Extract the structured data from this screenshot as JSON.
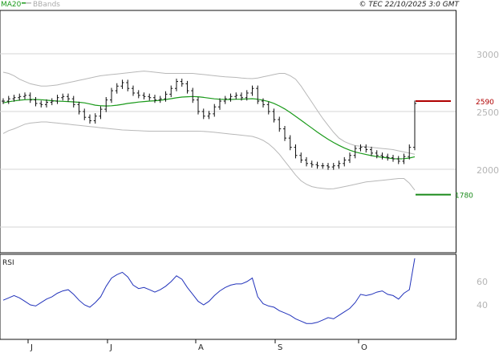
{
  "header": {
    "ma_label": "MA20",
    "bbands_label": "BBands",
    "copyright": "© TEC 22/10/2025 3:0 GMT"
  },
  "rsi_label": "RSI",
  "colors": {
    "price": "#111111",
    "ma": "#1a9a1a",
    "bbands": "#b8b8b8",
    "rsi": "#2233bb",
    "resistance": "#b00000",
    "support": "#1a8a1a",
    "grid": "#d6d6d6"
  },
  "chart_data": [
    {
      "type": "line",
      "title": "",
      "price_axis": {
        "ticks": [
          2000,
          2500,
          3000
        ],
        "tick_labels": [
          "2000",
          "2500",
          "3000"
        ]
      },
      "x_labels": [
        "J",
        "J",
        "A",
        "S",
        "O"
      ],
      "levels": [
        {
          "name": "resistance",
          "value": 2590,
          "label": "2590"
        },
        {
          "name": "support",
          "value": 1780,
          "label": "1780"
        }
      ],
      "series": [
        {
          "name": "price",
          "values": [
            2590,
            2610,
            2620,
            2630,
            2640,
            2600,
            2570,
            2560,
            2580,
            2590,
            2620,
            2630,
            2610,
            2560,
            2500,
            2450,
            2420,
            2460,
            2520,
            2600,
            2680,
            2720,
            2750,
            2700,
            2660,
            2640,
            2630,
            2620,
            2600,
            2610,
            2650,
            2700,
            2760,
            2740,
            2680,
            2600,
            2500,
            2460,
            2480,
            2540,
            2590,
            2610,
            2630,
            2640,
            2620,
            2660,
            2700,
            2590,
            2560,
            2500,
            2430,
            2350,
            2270,
            2190,
            2120,
            2080,
            2050,
            2040,
            2030,
            2030,
            2020,
            2030,
            2050,
            2080,
            2120,
            2180,
            2190,
            2170,
            2140,
            2120,
            2110,
            2100,
            2090,
            2070,
            2110,
            2190,
            2570
          ]
        },
        {
          "name": "MA20",
          "values": [
            2575,
            2585,
            2592,
            2598,
            2602,
            2604,
            2604,
            2602,
            2598,
            2594,
            2590,
            2588,
            2586,
            2583,
            2580,
            2575,
            2565,
            2555,
            2550,
            2548,
            2550,
            2555,
            2562,
            2570,
            2576,
            2582,
            2586,
            2590,
            2593,
            2597,
            2604,
            2611,
            2619,
            2625,
            2628,
            2630,
            2628,
            2622,
            2616,
            2610,
            2606,
            2604,
            2604,
            2606,
            2607,
            2609,
            2611,
            2606,
            2598,
            2586,
            2570,
            2548,
            2522,
            2492,
            2458,
            2424,
            2390,
            2356,
            2322,
            2290,
            2260,
            2232,
            2207,
            2185,
            2165,
            2150,
            2138,
            2128,
            2118,
            2110,
            2104,
            2098,
            2092,
            2090,
            2092,
            2097,
            2108
          ]
        },
        {
          "name": "BBands upper",
          "values": [
            2840,
            2830,
            2810,
            2780,
            2760,
            2740,
            2730,
            2720,
            2720,
            2725,
            2730,
            2740,
            2750,
            2760,
            2770,
            2780,
            2790,
            2800,
            2810,
            2815,
            2820,
            2825,
            2830,
            2835,
            2840,
            2845,
            2850,
            2845,
            2840,
            2835,
            2830,
            2830,
            2830,
            2830,
            2830,
            2830,
            2825,
            2820,
            2815,
            2810,
            2805,
            2800,
            2798,
            2795,
            2790,
            2787,
            2785,
            2790,
            2800,
            2810,
            2820,
            2830,
            2830,
            2810,
            2780,
            2720,
            2650,
            2580,
            2510,
            2440,
            2380,
            2320,
            2270,
            2240,
            2220,
            2205,
            2200,
            2195,
            2190,
            2185,
            2180,
            2175,
            2170,
            2160,
            2150,
            2140,
            2130
          ]
        },
        {
          "name": "BBands lower",
          "values": [
            2310,
            2335,
            2350,
            2370,
            2390,
            2400,
            2405,
            2410,
            2410,
            2405,
            2400,
            2395,
            2390,
            2385,
            2380,
            2375,
            2370,
            2365,
            2360,
            2355,
            2350,
            2345,
            2340,
            2338,
            2336,
            2334,
            2332,
            2330,
            2330,
            2330,
            2330,
            2330,
            2330,
            2330,
            2330,
            2330,
            2330,
            2328,
            2325,
            2320,
            2315,
            2310,
            2305,
            2300,
            2295,
            2290,
            2285,
            2270,
            2250,
            2220,
            2180,
            2130,
            2070,
            2010,
            1950,
            1900,
            1870,
            1850,
            1840,
            1835,
            1830,
            1832,
            1840,
            1850,
            1860,
            1870,
            1880,
            1890,
            1895,
            1900,
            1905,
            1910,
            1915,
            1920,
            1920,
            1880,
            1820
          ]
        }
      ]
    },
    {
      "type": "line",
      "title": "RSI",
      "y_ticks": [
        40,
        60
      ],
      "tick_labels": [
        "40",
        "60"
      ],
      "series": [
        {
          "name": "RSI",
          "values": [
            44,
            46,
            48,
            46,
            43,
            40,
            39,
            42,
            45,
            47,
            50,
            52,
            53,
            49,
            44,
            40,
            38,
            42,
            47,
            56,
            63,
            66,
            68,
            64,
            57,
            54,
            55,
            53,
            51,
            53,
            56,
            60,
            65,
            62,
            55,
            49,
            43,
            40,
            43,
            48,
            52,
            55,
            57,
            58,
            58,
            60,
            63,
            47,
            41,
            39,
            38,
            35,
            33,
            31,
            28,
            26,
            24,
            24,
            25,
            27,
            29,
            28,
            31,
            34,
            37,
            42,
            49,
            48,
            49,
            51,
            52,
            49,
            48,
            45,
            50,
            53,
            80
          ]
        }
      ]
    }
  ]
}
